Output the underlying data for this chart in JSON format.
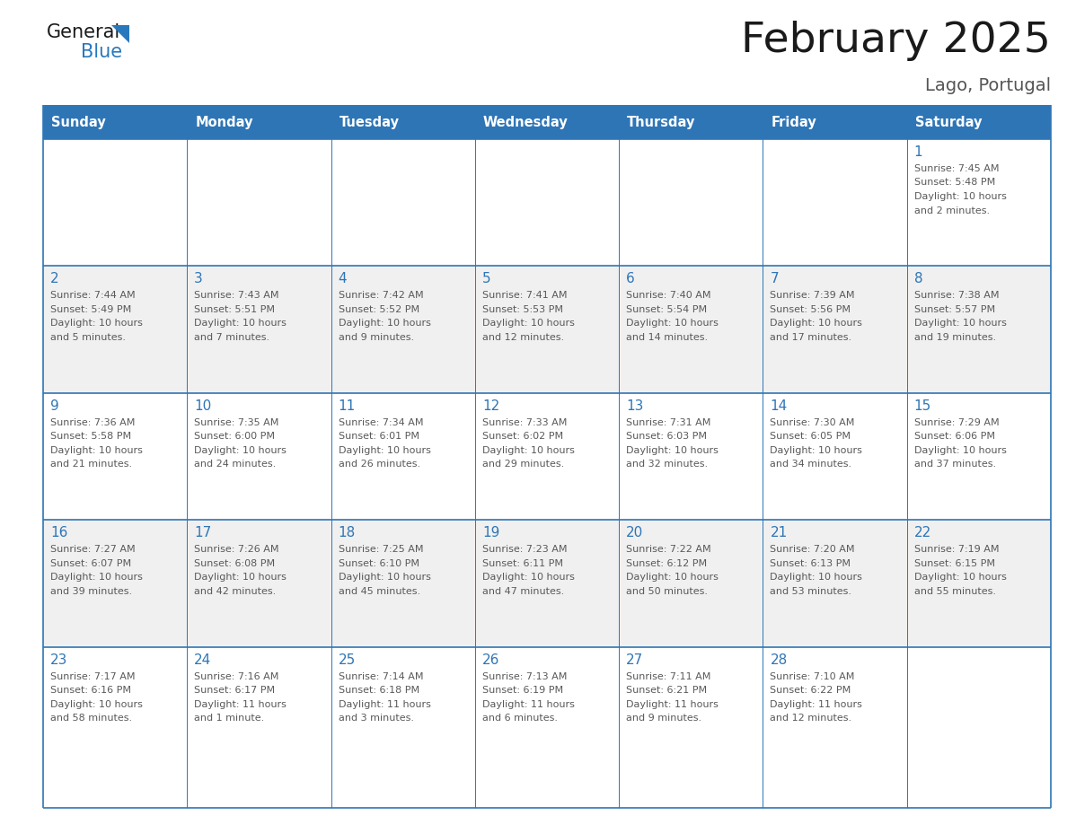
{
  "title": "February 2025",
  "subtitle": "Lago, Portugal",
  "days_of_week": [
    "Sunday",
    "Monday",
    "Tuesday",
    "Wednesday",
    "Thursday",
    "Friday",
    "Saturday"
  ],
  "header_bg": "#2E75B6",
  "header_text_color": "#FFFFFF",
  "cell_bg_even": "#FFFFFF",
  "cell_bg_odd": "#F0F0F0",
  "border_color": "#2E75B6",
  "text_color": "#595959",
  "day_number_color": "#2E75B6",
  "title_color": "#1a1a1a",
  "subtitle_color": "#555555",
  "logo_general_color": "#1a1a1a",
  "logo_blue_color": "#2878BE",
  "calendar": [
    [
      null,
      null,
      null,
      null,
      null,
      null,
      1
    ],
    [
      2,
      3,
      4,
      5,
      6,
      7,
      8
    ],
    [
      9,
      10,
      11,
      12,
      13,
      14,
      15
    ],
    [
      16,
      17,
      18,
      19,
      20,
      21,
      22
    ],
    [
      23,
      24,
      25,
      26,
      27,
      28,
      null
    ]
  ],
  "sunrise": {
    "1": "7:45 AM",
    "2": "7:44 AM",
    "3": "7:43 AM",
    "4": "7:42 AM",
    "5": "7:41 AM",
    "6": "7:40 AM",
    "7": "7:39 AM",
    "8": "7:38 AM",
    "9": "7:36 AM",
    "10": "7:35 AM",
    "11": "7:34 AM",
    "12": "7:33 AM",
    "13": "7:31 AM",
    "14": "7:30 AM",
    "15": "7:29 AM",
    "16": "7:27 AM",
    "17": "7:26 AM",
    "18": "7:25 AM",
    "19": "7:23 AM",
    "20": "7:22 AM",
    "21": "7:20 AM",
    "22": "7:19 AM",
    "23": "7:17 AM",
    "24": "7:16 AM",
    "25": "7:14 AM",
    "26": "7:13 AM",
    "27": "7:11 AM",
    "28": "7:10 AM"
  },
  "sunset": {
    "1": "5:48 PM",
    "2": "5:49 PM",
    "3": "5:51 PM",
    "4": "5:52 PM",
    "5": "5:53 PM",
    "6": "5:54 PM",
    "7": "5:56 PM",
    "8": "5:57 PM",
    "9": "5:58 PM",
    "10": "6:00 PM",
    "11": "6:01 PM",
    "12": "6:02 PM",
    "13": "6:03 PM",
    "14": "6:05 PM",
    "15": "6:06 PM",
    "16": "6:07 PM",
    "17": "6:08 PM",
    "18": "6:10 PM",
    "19": "6:11 PM",
    "20": "6:12 PM",
    "21": "6:13 PM",
    "22": "6:15 PM",
    "23": "6:16 PM",
    "24": "6:17 PM",
    "25": "6:18 PM",
    "26": "6:19 PM",
    "27": "6:21 PM",
    "28": "6:22 PM"
  },
  "daylight": {
    "1": "10 hours and 2 minutes.",
    "2": "10 hours and 5 minutes.",
    "3": "10 hours and 7 minutes.",
    "4": "10 hours and 9 minutes.",
    "5": "10 hours and 12 minutes.",
    "6": "10 hours and 14 minutes.",
    "7": "10 hours and 17 minutes.",
    "8": "10 hours and 19 minutes.",
    "9": "10 hours and 21 minutes.",
    "10": "10 hours and 24 minutes.",
    "11": "10 hours and 26 minutes.",
    "12": "10 hours and 29 minutes.",
    "13": "10 hours and 32 minutes.",
    "14": "10 hours and 34 minutes.",
    "15": "10 hours and 37 minutes.",
    "16": "10 hours and 39 minutes.",
    "17": "10 hours and 42 minutes.",
    "18": "10 hours and 45 minutes.",
    "19": "10 hours and 47 minutes.",
    "20": "10 hours and 50 minutes.",
    "21": "10 hours and 53 minutes.",
    "22": "10 hours and 55 minutes.",
    "23": "10 hours and 58 minutes.",
    "24": "11 hours and 1 minute.",
    "25": "11 hours and 3 minutes.",
    "26": "11 hours and 6 minutes.",
    "27": "11 hours and 9 minutes.",
    "28": "11 hours and 12 minutes."
  },
  "fig_width": 11.88,
  "fig_height": 9.18,
  "dpi": 100
}
